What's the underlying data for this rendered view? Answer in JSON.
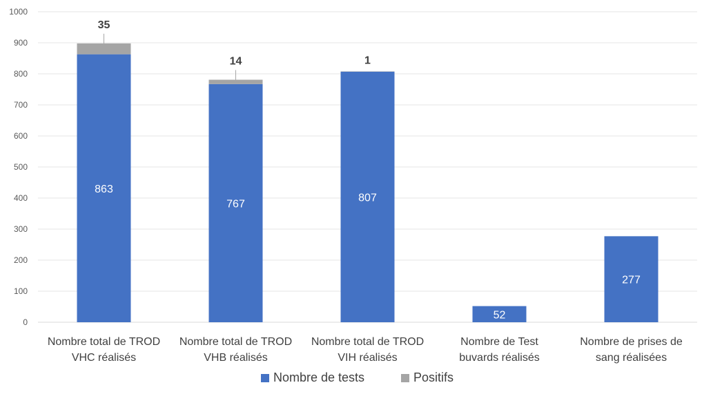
{
  "chart_data": {
    "type": "bar",
    "stacked": true,
    "categories": [
      [
        "Nombre total de TROD",
        "VHC réalisés"
      ],
      [
        "Nombre total de TROD",
        "VHB réalisés"
      ],
      [
        "Nombre total de TROD",
        "VIH réalisés"
      ],
      [
        "Nombre de Test",
        "buvards réalisés"
      ],
      [
        "Nombre de prises de",
        "sang réalisées"
      ]
    ],
    "series": [
      {
        "name": "Nombre de tests",
        "color": "#4472C4",
        "values": [
          863,
          767,
          807,
          52,
          277
        ],
        "labels": [
          "863",
          "767",
          "807",
          "52",
          "277"
        ]
      },
      {
        "name": "Positifs",
        "color": "#A5A5A5",
        "values": [
          35,
          14,
          1,
          null,
          null
        ],
        "labels": [
          "35",
          "14",
          "1",
          "",
          ""
        ]
      }
    ],
    "ylim": [
      0,
      1000
    ],
    "yticks": [
      0,
      100,
      200,
      300,
      400,
      500,
      600,
      700,
      800,
      900,
      1000
    ],
    "grid": true,
    "legend_position": "bottom",
    "title": "",
    "xlabel": "",
    "ylabel": ""
  }
}
